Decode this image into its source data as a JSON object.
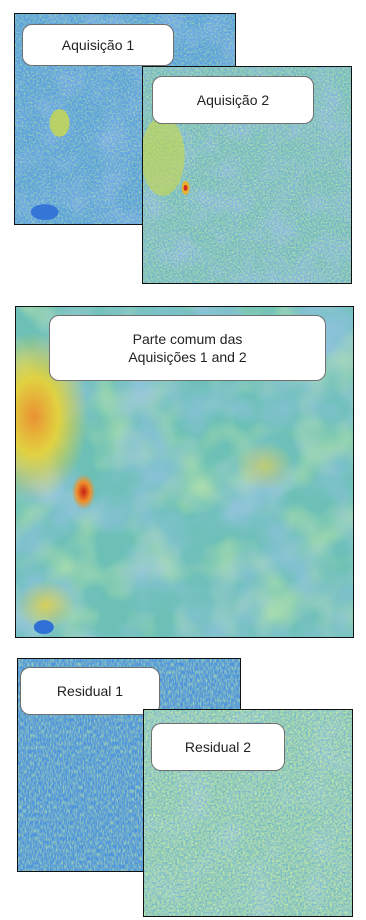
{
  "panels": {
    "acquisition_1": {
      "label": "Aquisição 1"
    },
    "acquisition_2": {
      "label": "Aquisição 2"
    },
    "common_part": {
      "label_line1": "Parte comum  das",
      "label_line2": "Aquisições 1 and 2"
    },
    "residual_1": {
      "label": "Residual 1"
    },
    "residual_2": {
      "label": "Residual 2"
    }
  },
  "colors": {
    "low": "#2f6fd6",
    "mid_blue": "#4a90e0",
    "mid": "#5ab0d0",
    "green": "#8fcf6a",
    "yellow": "#e6d23a",
    "orange": "#ef8f2a",
    "high": "#c81e12",
    "frame": "#111111"
  }
}
